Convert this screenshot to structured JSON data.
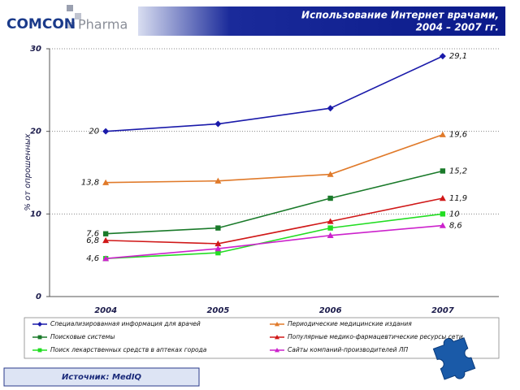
{
  "logo": {
    "brand": "COMCON",
    "product": "Pharma"
  },
  "source": "Источник: MedIQ",
  "chart_data": {
    "type": "line",
    "title": [
      "Использование Интернет врачами,",
      "2004 – 2007 гг."
    ],
    "y_label": "% от опрошенных",
    "categories": [
      "2004",
      "2005",
      "2006",
      "2007"
    ],
    "ylim": [
      0,
      30
    ],
    "yticks": [
      0,
      10,
      20,
      30
    ],
    "grid": true,
    "series": [
      {
        "name": "Специализированная информация для врачей",
        "color": "#1a1aaa",
        "marker": "diamond",
        "values": [
          20,
          20.9,
          22.8,
          29.1
        ],
        "value_labels": [
          "20",
          null,
          null,
          "29,1"
        ]
      },
      {
        "name": "Периодические медицинские издания",
        "color": "#e07a2a",
        "marker": "triangle",
        "values": [
          13.8,
          14.0,
          14.8,
          19.6
        ],
        "value_labels": [
          "13,8",
          null,
          null,
          "19,6"
        ]
      },
      {
        "name": "Поисковые системы",
        "color": "#1a7a2a",
        "marker": "square",
        "values": [
          7.6,
          8.3,
          11.9,
          15.2
        ],
        "value_labels": [
          "7,6",
          null,
          null,
          "15,2"
        ]
      },
      {
        "name": "Популярные медико-фармацевтические ресурсы сети",
        "color": "#d01818",
        "marker": "triangle",
        "values": [
          6.8,
          6.4,
          9.1,
          11.9
        ],
        "value_labels": [
          "6,8",
          null,
          null,
          "11,9"
        ]
      },
      {
        "name": "Поиск лекарственных средств в аптеках города",
        "color": "#22dd22",
        "marker": "square",
        "values": [
          4.6,
          5.3,
          8.3,
          10
        ],
        "value_labels": [
          null,
          null,
          null,
          "10"
        ]
      },
      {
        "name": "Сайты компаний-производителей ЛП",
        "color": "#cc22cc",
        "marker": "triangle",
        "values": [
          4.6,
          5.8,
          7.4,
          8.6
        ],
        "value_labels": [
          "4,6",
          null,
          null,
          "8,6"
        ]
      }
    ]
  }
}
